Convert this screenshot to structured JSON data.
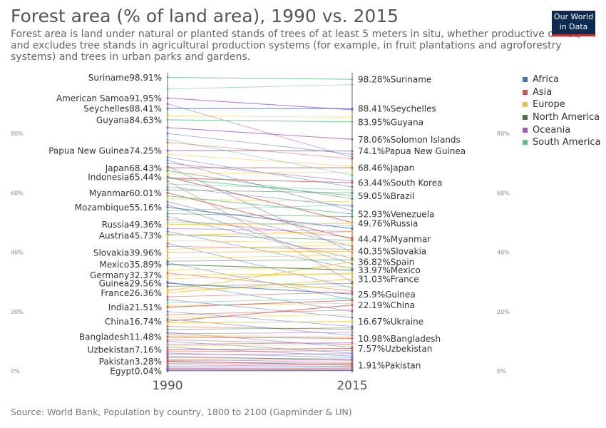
{
  "title": "Forest area (% of land area), 1990 vs. 2015",
  "subtitle": "Forest area is land under natural or planted stands of trees of at least 5 meters in situ, whether productive or not, and excludes tree stands in agricultural production systems (for example, in fruit plantations and agroforestry systems) and trees in urban parks and gardens.",
  "logo": {
    "line1": "Our World",
    "line2": "in Data"
  },
  "footer": "Source: World Bank, Population by country, 1800 to 2100 (Gapminder & UN)",
  "legend": [
    {
      "name": "Africa",
      "color": "#4c6fbf"
    },
    {
      "name": "Asia",
      "color": "#d2534b"
    },
    {
      "name": "Europe",
      "color": "#f2c12e"
    },
    {
      "name": "North America",
      "color": "#3f7a3f"
    },
    {
      "name": "Oceania",
      "color": "#a154c4"
    },
    {
      "name": "South America",
      "color": "#5fbf8a"
    }
  ],
  "chart_data": {
    "type": "slope",
    "x": [
      "1990",
      "2015"
    ],
    "ylim": [
      0,
      100
    ],
    "y_ticks": [
      0,
      20,
      40,
      60,
      80
    ],
    "y_tick_labels": [
      "0%",
      "20%",
      "40%",
      "60%",
      "80%"
    ],
    "labeled_left": [
      {
        "name": "Suriname",
        "value": 98.91
      },
      {
        "name": "American Samoa",
        "value": 91.95
      },
      {
        "name": "Seychelles",
        "value": 88.41
      },
      {
        "name": "Guyana",
        "value": 84.63
      },
      {
        "name": "Papua New Guinea",
        "value": 74.25
      },
      {
        "name": "Japan",
        "value": 68.43
      },
      {
        "name": "Indonesia",
        "value": 65.44
      },
      {
        "name": "Myanmar",
        "value": 60.01
      },
      {
        "name": "Mozambique",
        "value": 55.16
      },
      {
        "name": "Russia",
        "value": 49.36
      },
      {
        "name": "Austria",
        "value": 45.73
      },
      {
        "name": "Slovakia",
        "value": 39.96
      },
      {
        "name": "Mexico",
        "value": 35.89
      },
      {
        "name": "Germany",
        "value": 32.37
      },
      {
        "name": "Guinea",
        "value": 29.56
      },
      {
        "name": "France",
        "value": 26.36
      },
      {
        "name": "India",
        "value": 21.51
      },
      {
        "name": "China",
        "value": 16.74
      },
      {
        "name": "Bangladesh",
        "value": 11.48
      },
      {
        "name": "Uzbekistan",
        "value": 7.16
      },
      {
        "name": "Pakistan",
        "value": 3.28
      },
      {
        "name": "Egypt",
        "value": 0.04
      }
    ],
    "labeled_right": [
      {
        "name": "Suriname",
        "value": 98.28
      },
      {
        "name": "Seychelles",
        "value": 88.41
      },
      {
        "name": "Guyana",
        "value": 83.95
      },
      {
        "name": "Solomon Islands",
        "value": 78.06
      },
      {
        "name": "Papua New Guinea",
        "value": 74.1
      },
      {
        "name": "Japan",
        "value": 68.46
      },
      {
        "name": "South Korea",
        "value": 63.44
      },
      {
        "name": "Brazil",
        "value": 59.05
      },
      {
        "name": "Venezuela",
        "value": 52.93
      },
      {
        "name": "Russia",
        "value": 49.76
      },
      {
        "name": "Myanmar",
        "value": 44.47
      },
      {
        "name": "Slovakia",
        "value": 40.35
      },
      {
        "name": "Spain",
        "value": 36.82
      },
      {
        "name": "Mexico",
        "value": 33.97
      },
      {
        "name": "France",
        "value": 31.03
      },
      {
        "name": "Guinea",
        "value": 25.9
      },
      {
        "name": "China",
        "value": 22.19
      },
      {
        "name": "Ukraine",
        "value": 16.67
      },
      {
        "name": "Bangladesh",
        "value": 10.98
      },
      {
        "name": "Uzbekistan",
        "value": 7.57
      },
      {
        "name": "Pakistan",
        "value": 1.91
      }
    ],
    "series": [
      {
        "name": "Suriname",
        "values": [
          98.91,
          98.28
        ],
        "color": "#5fbf8a"
      },
      {
        "name": "American Samoa",
        "values": [
          91.95,
          88.0
        ],
        "color": "#a154c4"
      },
      {
        "name": "Seychelles",
        "values": [
          88.41,
          88.41
        ],
        "color": "#4c6fbf"
      },
      {
        "name": "Guyana",
        "values": [
          84.63,
          83.95
        ],
        "color": "#5fbf8a"
      },
      {
        "name": "Solomon Islands",
        "values": [
          82.0,
          78.06
        ],
        "color": "#a154c4"
      },
      {
        "name": "Papua New Guinea",
        "values": [
          74.25,
          74.1
        ],
        "color": "#a154c4"
      },
      {
        "name": "Japan",
        "values": [
          68.43,
          68.46
        ],
        "color": "#d2534b"
      },
      {
        "name": "Indonesia",
        "values": [
          65.44,
          50.0
        ],
        "color": "#d2534b"
      },
      {
        "name": "South Korea",
        "values": [
          65.0,
          63.44
        ],
        "color": "#d2534b"
      },
      {
        "name": "Brazil",
        "values": [
          65.0,
          59.05
        ],
        "color": "#5fbf8a"
      },
      {
        "name": "Myanmar",
        "values": [
          60.01,
          44.47
        ],
        "color": "#d2534b"
      },
      {
        "name": "Venezuela",
        "values": [
          59.0,
          52.93
        ],
        "color": "#5fbf8a"
      },
      {
        "name": "Mozambique",
        "values": [
          55.16,
          48.0
        ],
        "color": "#4c6fbf"
      },
      {
        "name": "Russia",
        "values": [
          49.36,
          49.76
        ],
        "color": "#f2c12e"
      },
      {
        "name": "Austria",
        "values": [
          45.73,
          46.9
        ],
        "color": "#f2c12e"
      },
      {
        "name": "Slovakia",
        "values": [
          39.96,
          40.35
        ],
        "color": "#f2c12e"
      },
      {
        "name": "Spain",
        "values": [
          27.0,
          36.82
        ],
        "color": "#f2c12e"
      },
      {
        "name": "Mexico",
        "values": [
          35.89,
          33.97
        ],
        "color": "#3f7a3f"
      },
      {
        "name": "Germany",
        "values": [
          32.37,
          32.7
        ],
        "color": "#f2c12e"
      },
      {
        "name": "France",
        "values": [
          26.36,
          31.03
        ],
        "color": "#f2c12e"
      },
      {
        "name": "Guinea",
        "values": [
          29.56,
          25.9
        ],
        "color": "#4c6fbf"
      },
      {
        "name": "India",
        "values": [
          21.51,
          23.8
        ],
        "color": "#d2534b"
      },
      {
        "name": "China",
        "values": [
          16.74,
          22.19
        ],
        "color": "#d2534b"
      },
      {
        "name": "Ukraine",
        "values": [
          16.2,
          16.67
        ],
        "color": "#f2c12e"
      },
      {
        "name": "Bangladesh",
        "values": [
          11.48,
          10.98
        ],
        "color": "#d2534b"
      },
      {
        "name": "Uzbekistan",
        "values": [
          7.16,
          7.57
        ],
        "color": "#d2534b"
      },
      {
        "name": "Pakistan",
        "values": [
          3.28,
          1.91
        ],
        "color": "#d2534b"
      },
      {
        "name": "Egypt",
        "values": [
          0.04,
          0.07
        ],
        "color": "#4c6fbf"
      }
    ],
    "background_series": [
      {
        "values": [
          95.0,
          96.5
        ],
        "color": "#5fbf8a"
      },
      {
        "values": [
          90.0,
          72.0
        ],
        "color": "#a154c4"
      },
      {
        "values": [
          86.0,
          85.5
        ],
        "color": "#f2c12e"
      },
      {
        "values": [
          80.0,
          73.0
        ],
        "color": "#4c6fbf"
      },
      {
        "values": [
          78.0,
          66.0
        ],
        "color": "#5fbf8a"
      },
      {
        "values": [
          77.0,
          71.5
        ],
        "color": "#d2534b"
      },
      {
        "values": [
          73.0,
          69.0
        ],
        "color": "#f2c12e"
      },
      {
        "values": [
          72.0,
          62.0
        ],
        "color": "#4c6fbf"
      },
      {
        "values": [
          71.0,
          54.0
        ],
        "color": "#4c6fbf"
      },
      {
        "values": [
          70.0,
          64.0
        ],
        "color": "#a154c4"
      },
      {
        "values": [
          69.0,
          40.0
        ],
        "color": "#4c6fbf"
      },
      {
        "values": [
          67.5,
          58.0
        ],
        "color": "#3f7a3f"
      },
      {
        "values": [
          66.5,
          67.0
        ],
        "color": "#f2c12e"
      },
      {
        "values": [
          64.0,
          30.0
        ],
        "color": "#d2534b"
      },
      {
        "values": [
          63.0,
          61.0
        ],
        "color": "#5fbf8a"
      },
      {
        "values": [
          62.0,
          55.5
        ],
        "color": "#4c6fbf"
      },
      {
        "values": [
          61.0,
          60.0
        ],
        "color": "#3f7a3f"
      },
      {
        "values": [
          58.0,
          57.0
        ],
        "color": "#f2c12e"
      },
      {
        "values": [
          57.0,
          42.0
        ],
        "color": "#4c6fbf"
      },
      {
        "values": [
          56.0,
          36.0
        ],
        "color": "#4c6fbf"
      },
      {
        "values": [
          54.0,
          56.0
        ],
        "color": "#5fbf8a"
      },
      {
        "values": [
          53.0,
          52.0
        ],
        "color": "#3f7a3f"
      },
      {
        "values": [
          52.0,
          38.0
        ],
        "color": "#4c6fbf"
      },
      {
        "values": [
          51.0,
          45.0
        ],
        "color": "#d2534b"
      },
      {
        "values": [
          50.0,
          49.0
        ],
        "color": "#5fbf8a"
      },
      {
        "values": [
          48.0,
          47.0
        ],
        "color": "#a154c4"
      },
      {
        "values": [
          47.0,
          34.5
        ],
        "color": "#4c6fbf"
      },
      {
        "values": [
          46.0,
          44.0
        ],
        "color": "#3f7a3f"
      },
      {
        "values": [
          44.0,
          43.0
        ],
        "color": "#f2c12e"
      },
      {
        "values": [
          43.0,
          28.0
        ],
        "color": "#4c6fbf"
      },
      {
        "values": [
          42.0,
          41.0
        ],
        "color": "#d2534b"
      },
      {
        "values": [
          41.0,
          42.5
        ],
        "color": "#f2c12e"
      },
      {
        "values": [
          38.0,
          39.0
        ],
        "color": "#f2c12e"
      },
      {
        "values": [
          37.0,
          37.5
        ],
        "color": "#3f7a3f"
      },
      {
        "values": [
          36.5,
          24.0
        ],
        "color": "#4c6fbf"
      },
      {
        "values": [
          34.0,
          35.0
        ],
        "color": "#f2c12e"
      },
      {
        "values": [
          33.0,
          27.0
        ],
        "color": "#d2534b"
      },
      {
        "values": [
          31.0,
          33.0
        ],
        "color": "#f2c12e"
      },
      {
        "values": [
          30.0,
          20.0
        ],
        "color": "#4c6fbf"
      },
      {
        "values": [
          28.5,
          29.5
        ],
        "color": "#3f7a3f"
      },
      {
        "values": [
          27.5,
          28.5
        ],
        "color": "#f2c12e"
      },
      {
        "values": [
          25.0,
          26.5
        ],
        "color": "#d2534b"
      },
      {
        "values": [
          24.0,
          18.0
        ],
        "color": "#4c6fbf"
      },
      {
        "values": [
          23.0,
          24.5
        ],
        "color": "#5fbf8a"
      },
      {
        "values": [
          22.0,
          22.8
        ],
        "color": "#f2c12e"
      },
      {
        "values": [
          20.0,
          15.0
        ],
        "color": "#4c6fbf"
      },
      {
        "values": [
          19.0,
          20.5
        ],
        "color": "#d2534b"
      },
      {
        "values": [
          18.0,
          19.0
        ],
        "color": "#f2c12e"
      },
      {
        "values": [
          17.5,
          12.0
        ],
        "color": "#4c6fbf"
      },
      {
        "values": [
          15.0,
          14.0
        ],
        "color": "#d2534b"
      },
      {
        "values": [
          14.0,
          14.5
        ],
        "color": "#3f7a3f"
      },
      {
        "values": [
          13.0,
          8.0
        ],
        "color": "#4c6fbf"
      },
      {
        "values": [
          12.5,
          13.0
        ],
        "color": "#a154c4"
      },
      {
        "values": [
          12.0,
          11.5
        ],
        "color": "#f2c12e"
      },
      {
        "values": [
          10.5,
          9.0
        ],
        "color": "#d2534b"
      },
      {
        "values": [
          10.0,
          6.0
        ],
        "color": "#4c6fbf"
      },
      {
        "values": [
          9.0,
          9.5
        ],
        "color": "#a154c4"
      },
      {
        "values": [
          8.5,
          8.8
        ],
        "color": "#f2c12e"
      },
      {
        "values": [
          8.0,
          5.0
        ],
        "color": "#4c6fbf"
      },
      {
        "values": [
          6.5,
          6.8
        ],
        "color": "#d2534b"
      },
      {
        "values": [
          6.0,
          4.5
        ],
        "color": "#4c6fbf"
      },
      {
        "values": [
          5.5,
          5.8
        ],
        "color": "#a154c4"
      },
      {
        "values": [
          5.0,
          3.5
        ],
        "color": "#d2534b"
      },
      {
        "values": [
          4.5,
          4.0
        ],
        "color": "#3f7a3f"
      },
      {
        "values": [
          4.0,
          2.8
        ],
        "color": "#d2534b"
      },
      {
        "values": [
          3.5,
          3.8
        ],
        "color": "#a154c4"
      },
      {
        "values": [
          3.0,
          2.5
        ],
        "color": "#4c6fbf"
      },
      {
        "values": [
          2.5,
          2.2
        ],
        "color": "#d2534b"
      },
      {
        "values": [
          2.0,
          1.5
        ],
        "color": "#a154c4"
      },
      {
        "values": [
          1.5,
          1.2
        ],
        "color": "#4c6fbf"
      },
      {
        "values": [
          1.0,
          0.8
        ],
        "color": "#d2534b"
      },
      {
        "values": [
          0.8,
          0.5
        ],
        "color": "#a154c4"
      },
      {
        "values": [
          0.5,
          0.3
        ],
        "color": "#4c6fbf"
      },
      {
        "values": [
          0.3,
          0.2
        ],
        "color": "#d2534b"
      },
      {
        "values": [
          0.2,
          0.1
        ],
        "color": "#a154c4"
      }
    ]
  }
}
